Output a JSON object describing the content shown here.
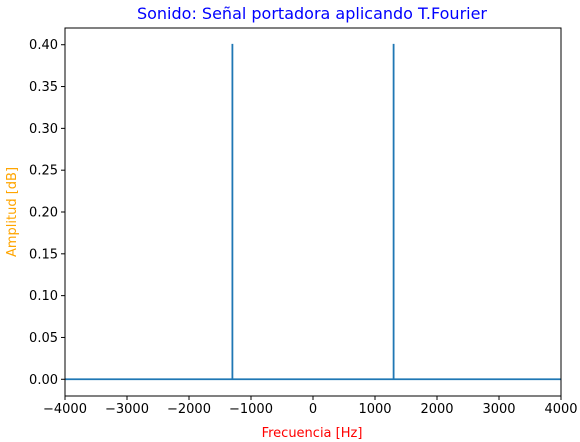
{
  "chart_data": {
    "type": "line",
    "title": "Sonido: Señal portadora aplicando T.Fourier",
    "xlabel": "Frecuencia [Hz]",
    "ylabel": "Amplitud [dB]",
    "xlim": [
      -4000,
      4000
    ],
    "ylim": [
      -0.02,
      0.42
    ],
    "xticks": [
      -4000,
      -3000,
      -2000,
      -1000,
      0,
      1000,
      2000,
      3000,
      4000
    ],
    "xtick_labels": [
      "−4000",
      "−3000",
      "−2000",
      "−1000",
      "0",
      "1000",
      "2000",
      "3000",
      "4000"
    ],
    "yticks": [
      0.0,
      0.05,
      0.1,
      0.15,
      0.2,
      0.25,
      0.3,
      0.35,
      0.4
    ],
    "ytick_labels": [
      "0.00",
      "0.05",
      "0.10",
      "0.15",
      "0.20",
      "0.25",
      "0.30",
      "0.35",
      "0.40"
    ],
    "grid": false,
    "series": [
      {
        "x": [
          -4000,
          -1300,
          -1300,
          -1300,
          -1290,
          0,
          1290,
          1300,
          1300,
          1300,
          4000
        ],
        "values": [
          0.0,
          0.0,
          0.401,
          0.0,
          0.0,
          0.0,
          0.0,
          0.0,
          0.401,
          0.0,
          0.0
        ]
      }
    ],
    "colors": {
      "line": "#1f77b4",
      "title": "#0000ff",
      "xlabel": "#ff0000",
      "ylabel": "#ffa500",
      "axes": "#000000"
    }
  }
}
